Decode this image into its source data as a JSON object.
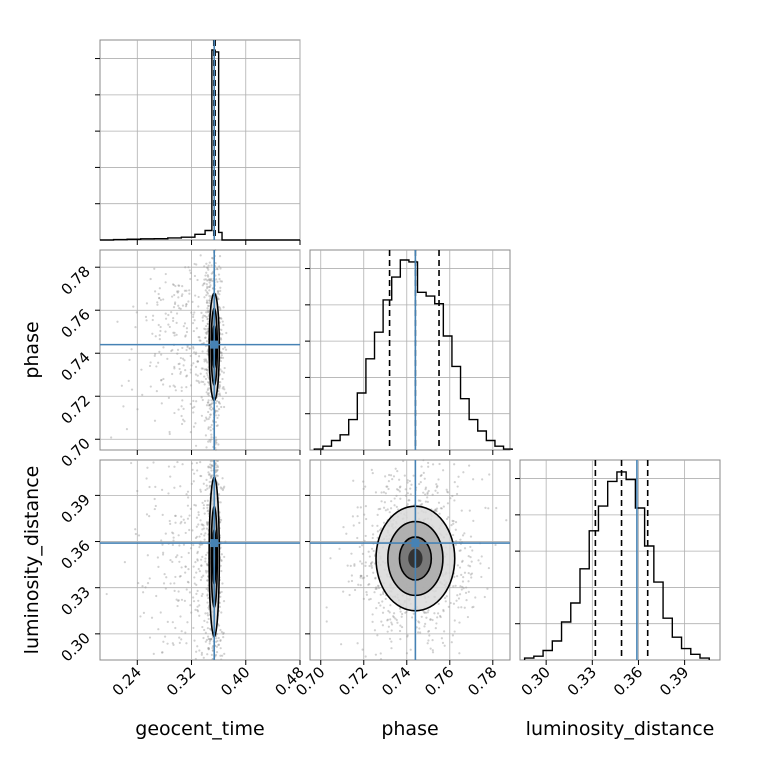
{
  "chart_data": {
    "type": "corner",
    "parameters": [
      "geocent_time",
      "phase",
      "luminosity_distance"
    ],
    "ranges": {
      "geocent_time": [
        0.185,
        0.48
      ],
      "phase": [
        0.695,
        0.788
      ],
      "luminosity_distance": [
        0.283,
        0.413
      ]
    },
    "ticks": {
      "geocent_time": [
        0.24,
        0.32,
        0.4,
        0.48
      ],
      "phase": [
        0.7,
        0.72,
        0.74,
        0.76,
        0.78
      ],
      "luminosity_distance": [
        0.3,
        0.33,
        0.36,
        0.39
      ]
    },
    "tick_labels": {
      "geocent_time": [
        "0.24",
        "0.32",
        "0.40",
        "0.48"
      ],
      "phase": [
        "0.70",
        "0.72",
        "0.74",
        "0.76",
        "0.78"
      ],
      "luminosity_distance": [
        "0.30",
        "0.33",
        "0.36",
        "0.39"
      ]
    },
    "truths": {
      "geocent_time": 0.3535,
      "phase": 0.744,
      "luminosity_distance": 0.359
    },
    "quantiles": {
      "geocent_time": [
        0.3528,
        0.3538,
        0.3548
      ],
      "phase": [
        0.732,
        0.744,
        0.755
      ],
      "luminosity_distance": [
        0.332,
        0.349,
        0.366
      ]
    },
    "histograms": {
      "geocent_time": {
        "edges": [
          0.185,
          0.205,
          0.225,
          0.245,
          0.265,
          0.285,
          0.305,
          0.325,
          0.34,
          0.35,
          0.3545,
          0.36,
          0.365,
          0.48
        ],
        "counts": [
          0.0,
          0.002,
          0.004,
          0.006,
          0.007,
          0.011,
          0.015,
          0.03,
          0.05,
          1.0,
          0.99,
          0.04,
          0.0
        ]
      },
      "phase": {
        "edges": [
          0.697,
          0.701,
          0.705,
          0.709,
          0.713,
          0.717,
          0.721,
          0.725,
          0.729,
          0.733,
          0.737,
          0.741,
          0.745,
          0.749,
          0.753,
          0.757,
          0.761,
          0.765,
          0.769,
          0.773,
          0.777,
          0.781,
          0.785,
          0.789
        ],
        "counts": [
          0.005,
          0.02,
          0.05,
          0.08,
          0.16,
          0.3,
          0.48,
          0.62,
          0.79,
          0.91,
          1.0,
          0.99,
          0.83,
          0.81,
          0.77,
          0.6,
          0.44,
          0.27,
          0.16,
          0.1,
          0.05,
          0.02,
          0.005
        ]
      },
      "luminosity_distance": {
        "edges": [
          0.286,
          0.292,
          0.298,
          0.304,
          0.31,
          0.316,
          0.322,
          0.328,
          0.334,
          0.34,
          0.346,
          0.352,
          0.358,
          0.364,
          0.37,
          0.376,
          0.382,
          0.388,
          0.394,
          0.4,
          0.406
        ],
        "counts": [
          0.01,
          0.02,
          0.05,
          0.1,
          0.2,
          0.3,
          0.48,
          0.68,
          0.81,
          0.94,
          0.99,
          0.95,
          0.8,
          0.6,
          0.41,
          0.22,
          0.12,
          0.06,
          0.03,
          0.01
        ]
      }
    },
    "contours": {
      "phase|geocent_time": {
        "center": [
          0.3535,
          0.743
        ],
        "half_widths": [
          [
            0.0075,
            0.025
          ],
          [
            0.0045,
            0.018
          ],
          [
            0.0025,
            0.01
          ]
        ]
      },
      "luminosity_distance|geocent_time": {
        "center": [
          0.3535,
          0.35
        ],
        "half_widths": [
          [
            0.0075,
            0.052
          ],
          [
            0.0045,
            0.033
          ],
          [
            0.0025,
            0.018
          ]
        ]
      },
      "luminosity_distance|phase": {
        "center": [
          0.744,
          0.349
        ],
        "half_widths": [
          [
            0.0183,
            0.034
          ],
          [
            0.0128,
            0.024
          ],
          [
            0.0074,
            0.014
          ]
        ]
      }
    },
    "grid": true,
    "colors": {
      "truth": "#4682b4",
      "lines": "#000000",
      "points": "#9a9a9a"
    }
  }
}
